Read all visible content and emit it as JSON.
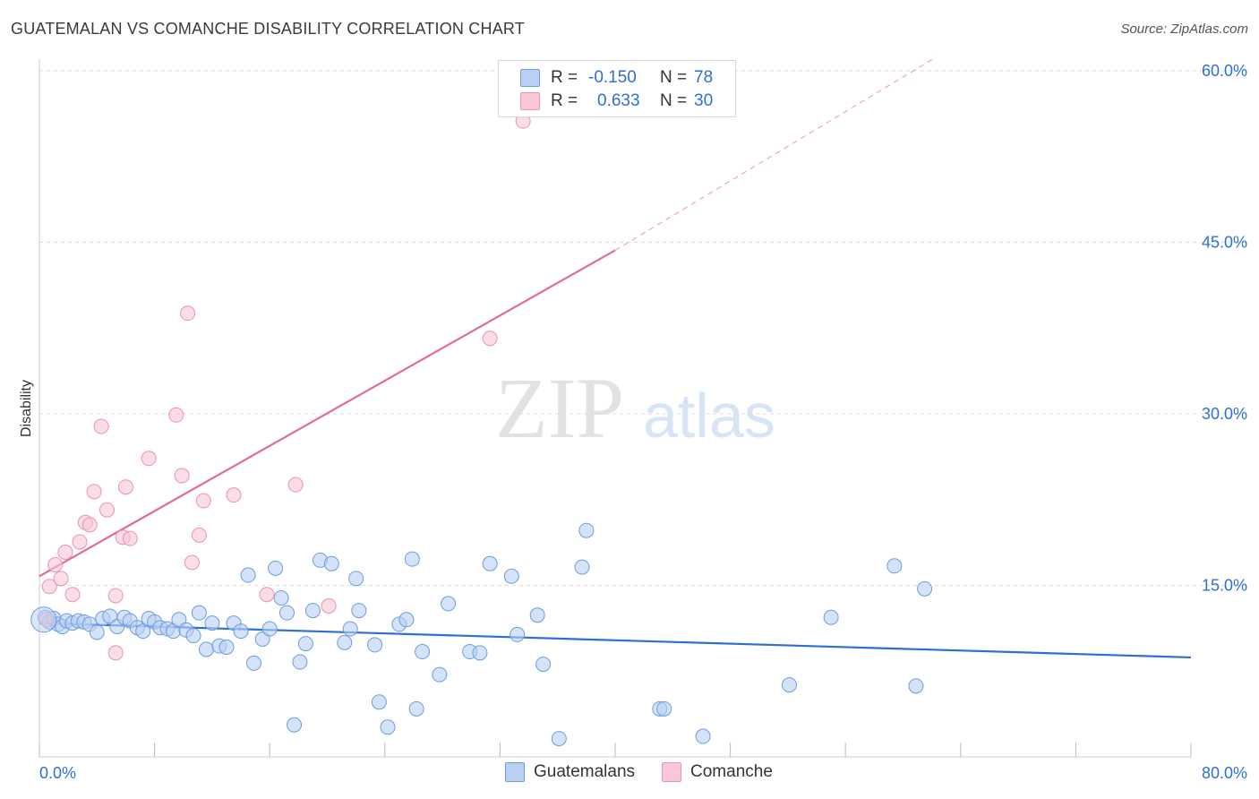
{
  "title": "GUATEMALAN VS COMANCHE DISABILITY CORRELATION CHART",
  "source": "Source: ZipAtlas.com",
  "watermark": {
    "zip": "ZIP",
    "atlas": "atlas"
  },
  "legend": {
    "guatemalan": {
      "r_label": "R =",
      "r_value": "-0.150",
      "n_label": "N =",
      "n_value": "78"
    },
    "comanche": {
      "r_label": "R =",
      "r_value": "0.633",
      "n_label": "N =",
      "n_value": "30"
    }
  },
  "bottom_legend": {
    "guatemalan": "Guatemalans",
    "comanche": "Comanche"
  },
  "colors": {
    "guatemalan_fill": "#b7d0f3",
    "guatemalan_stroke": "#6e9be0",
    "guatemalan_line": "#2e6fcf",
    "comanche_fill": "#f8c6d4",
    "comanche_stroke": "#ec92ad",
    "comanche_line": "#e26b93",
    "axis_text": "#2f6fd3",
    "grid": "#dddddd"
  },
  "chart_data": {
    "type": "scatter",
    "title": "GUATEMALAN VS COMANCHE DISABILITY CORRELATION CHART",
    "xlabel": "",
    "ylabel": "Disability",
    "xlim": [
      0,
      80
    ],
    "ylim": [
      0,
      60
    ],
    "x_tick_labels": [
      "0.0%",
      "80.0%"
    ],
    "y_ticks": [
      15,
      30,
      45,
      60
    ],
    "y_tick_labels": [
      "15.0%",
      "30.0%",
      "45.0%",
      "60.0%"
    ],
    "grid": true,
    "legend_position": "top-center",
    "series": [
      {
        "name": "Guatemalans",
        "points": [
          [
            0.4,
            12.2
          ],
          [
            0.7,
            11.8
          ],
          [
            1.0,
            12.1
          ],
          [
            1.3,
            11.6
          ],
          [
            1.6,
            11.4
          ],
          [
            1.9,
            11.9
          ],
          [
            2.3,
            11.7
          ],
          [
            2.7,
            11.9
          ],
          [
            3.1,
            11.8
          ],
          [
            3.5,
            11.6
          ],
          [
            4.0,
            10.9
          ],
          [
            4.4,
            12.1
          ],
          [
            4.9,
            12.3
          ],
          [
            5.4,
            11.4
          ],
          [
            5.9,
            12.2
          ],
          [
            6.3,
            11.9
          ],
          [
            6.8,
            11.3
          ],
          [
            7.2,
            11.0
          ],
          [
            7.6,
            12.1
          ],
          [
            8.0,
            11.8
          ],
          [
            8.4,
            11.3
          ],
          [
            8.9,
            11.2
          ],
          [
            9.3,
            11.0
          ],
          [
            9.7,
            12.0
          ],
          [
            10.2,
            11.1
          ],
          [
            10.7,
            10.6
          ],
          [
            11.1,
            12.6
          ],
          [
            11.6,
            9.4
          ],
          [
            12.0,
            11.7
          ],
          [
            12.5,
            9.7
          ],
          [
            13.0,
            9.6
          ],
          [
            13.5,
            11.7
          ],
          [
            14.0,
            11.0
          ],
          [
            14.5,
            15.9
          ],
          [
            14.9,
            8.2
          ],
          [
            15.5,
            10.3
          ],
          [
            16.0,
            11.2
          ],
          [
            16.4,
            16.5
          ],
          [
            16.8,
            13.9
          ],
          [
            17.2,
            12.6
          ],
          [
            17.7,
            2.8
          ],
          [
            18.1,
            8.3
          ],
          [
            18.5,
            9.9
          ],
          [
            19.0,
            12.8
          ],
          [
            19.5,
            17.2
          ],
          [
            20.3,
            16.9
          ],
          [
            21.2,
            10.0
          ],
          [
            21.6,
            11.2
          ],
          [
            22.0,
            15.6
          ],
          [
            22.2,
            12.8
          ],
          [
            23.3,
            9.8
          ],
          [
            23.6,
            4.8
          ],
          [
            24.2,
            2.6
          ],
          [
            25.0,
            11.6
          ],
          [
            25.5,
            12.0
          ],
          [
            25.9,
            17.3
          ],
          [
            26.2,
            4.2
          ],
          [
            26.6,
            9.2
          ],
          [
            27.8,
            7.2
          ],
          [
            28.4,
            13.4
          ],
          [
            29.9,
            9.2
          ],
          [
            30.6,
            9.1
          ],
          [
            31.3,
            16.9
          ],
          [
            32.8,
            15.8
          ],
          [
            33.2,
            10.7
          ],
          [
            34.6,
            12.4
          ],
          [
            35.0,
            8.1
          ],
          [
            36.1,
            1.6
          ],
          [
            37.7,
            16.6
          ],
          [
            38.0,
            19.8
          ],
          [
            43.1,
            4.2
          ],
          [
            43.4,
            4.2
          ],
          [
            46.1,
            1.8
          ],
          [
            52.1,
            6.3
          ],
          [
            55.0,
            12.2
          ],
          [
            59.4,
            16.7
          ],
          [
            60.9,
            6.2
          ],
          [
            61.5,
            14.7
          ]
        ],
        "trend": {
          "x": [
            0,
            80
          ],
          "y": [
            11.7,
            8.7
          ]
        }
      },
      {
        "name": "Comanche",
        "points": [
          [
            0.5,
            12.0
          ],
          [
            0.7,
            14.9
          ],
          [
            1.1,
            16.8
          ],
          [
            1.5,
            15.6
          ],
          [
            1.8,
            17.9
          ],
          [
            2.3,
            14.2
          ],
          [
            2.8,
            18.8
          ],
          [
            3.2,
            20.5
          ],
          [
            3.5,
            20.3
          ],
          [
            3.8,
            23.2
          ],
          [
            4.3,
            28.9
          ],
          [
            4.7,
            21.6
          ],
          [
            5.3,
            14.1
          ],
          [
            5.3,
            9.1
          ],
          [
            5.8,
            19.2
          ],
          [
            6.0,
            23.6
          ],
          [
            6.3,
            19.1
          ],
          [
            7.6,
            26.1
          ],
          [
            9.5,
            29.9
          ],
          [
            9.9,
            24.6
          ],
          [
            10.3,
            38.8
          ],
          [
            10.6,
            17.0
          ],
          [
            11.1,
            19.4
          ],
          [
            11.4,
            22.4
          ],
          [
            13.5,
            22.9
          ],
          [
            15.8,
            14.2
          ],
          [
            17.8,
            23.8
          ],
          [
            20.1,
            13.2
          ],
          [
            31.3,
            36.6
          ],
          [
            33.6,
            55.6
          ]
        ],
        "trend": {
          "x": [
            0,
            40
          ],
          "y": [
            15.8,
            44.3
          ]
        },
        "trend_dashed": {
          "x": [
            40,
            62.3
          ],
          "y": [
            44.3,
            61.2
          ]
        }
      }
    ]
  }
}
